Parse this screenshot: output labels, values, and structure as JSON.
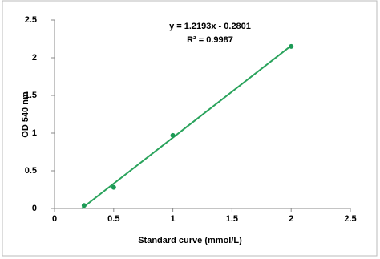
{
  "chart_data": {
    "type": "scatter",
    "x_label": "Standard curve (mmol/L)",
    "y_label": "OD 540 nm",
    "annotations": [
      "y = 1.2193x - 0.2801",
      "R² = 0.9987"
    ],
    "x": [
      0.25,
      0.5,
      1,
      2
    ],
    "series": [
      {
        "color": "#1c9a55",
        "values": [
          0.04,
          0.28,
          0.97,
          2.15
        ]
      }
    ],
    "trendline": {
      "color": "#2aa35c",
      "x": [
        0.23,
        2
      ],
      "values": [
        0.0,
        2.16
      ]
    },
    "xlim": [
      0,
      2.5
    ],
    "xticks": [
      0,
      0.5,
      1,
      1.5,
      2,
      2.5
    ],
    "ylim": [
      0,
      2.5
    ],
    "yticks": [
      0,
      0.5,
      1,
      1.5,
      2,
      2.5
    ]
  }
}
